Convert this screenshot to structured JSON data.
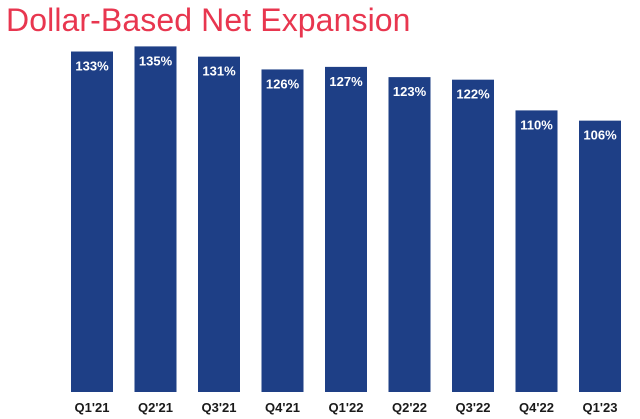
{
  "chart_data": {
    "type": "bar",
    "title": "Dollar-Based Net Expansion",
    "categories": [
      "Q1'21",
      "Q2'21",
      "Q3'21",
      "Q4'21",
      "Q1'22",
      "Q2'22",
      "Q3'22",
      "Q4'22",
      "Q1'23"
    ],
    "values": [
      133,
      135,
      131,
      126,
      127,
      123,
      122,
      110,
      106
    ],
    "value_labels": [
      "133%",
      "135%",
      "131%",
      "126%",
      "127%",
      "123%",
      "122%",
      "110%",
      "106%"
    ],
    "ylim": [
      0,
      150
    ],
    "bar_color": "#1e3f86",
    "title_color": "#e8364f",
    "grid": false,
    "legend": "none"
  }
}
